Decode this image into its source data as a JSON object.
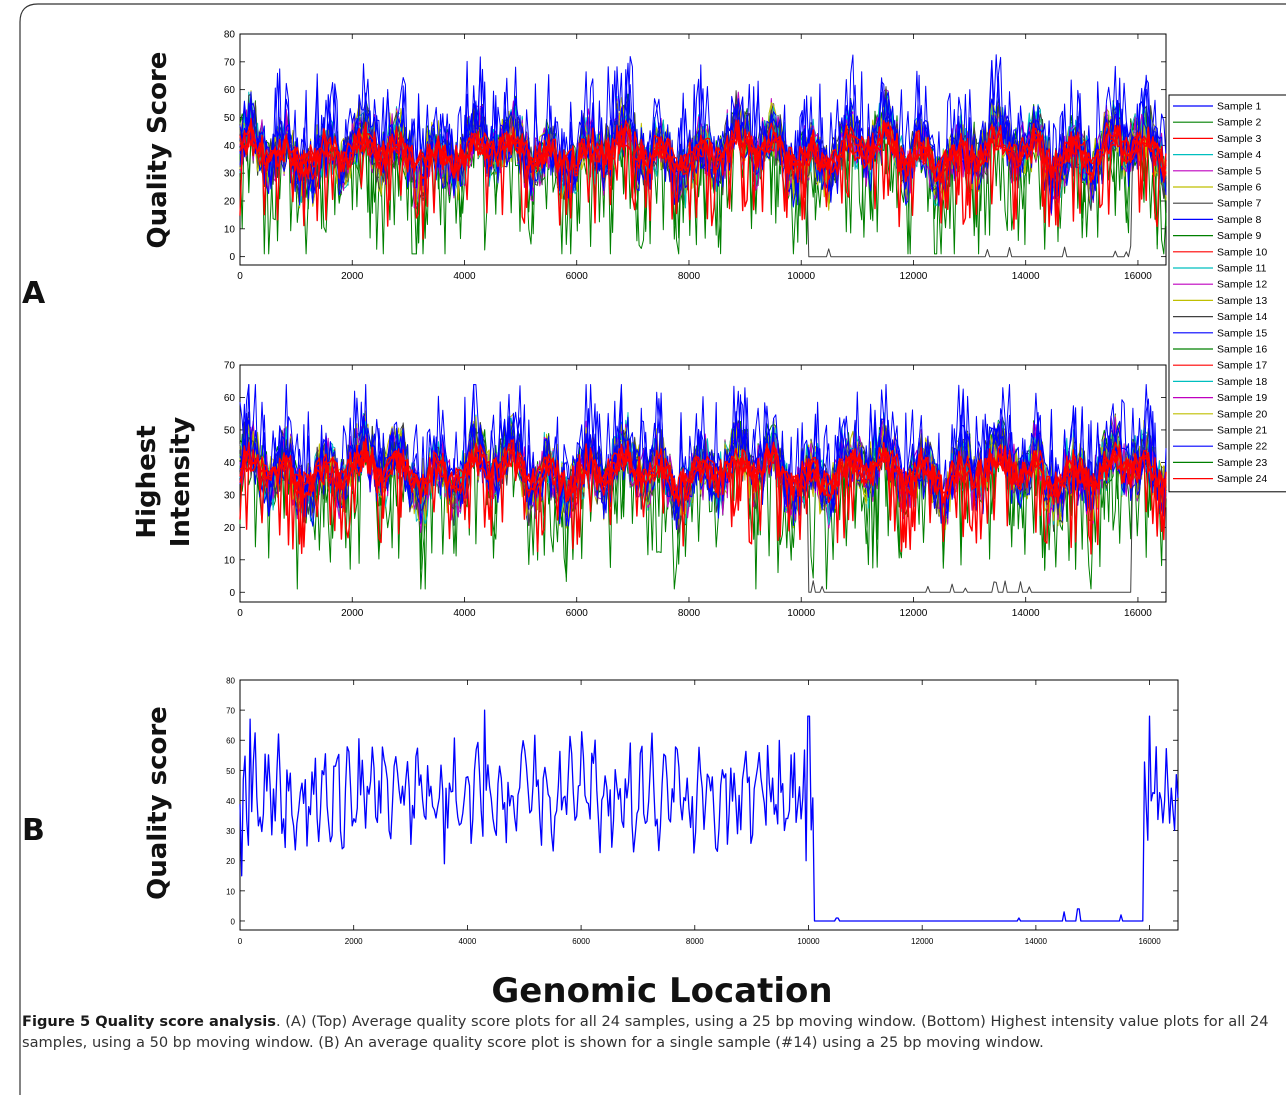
{
  "figure": {
    "panel_a_label": "A",
    "panel_b_label": "B",
    "x_axis_title": "Genomic Location",
    "caption_bold": "Figure 5 Quality score analysis",
    "caption_text": ". (A) (Top) Average quality score plots for all 24 samples, using a 25 bp moving window. (Bottom) Highest intensity value plots for all 24 samples, using a 50 bp moving window. (B) An average quality score plot is shown for a single sample (#14) using a 25 bp moving window."
  },
  "chart_data": [
    {
      "id": "a-top",
      "type": "line",
      "ylabel": "Quality Score",
      "xlim": [
        0,
        16500
      ],
      "ylim": [
        -3,
        80
      ],
      "xticks": [
        0,
        2000,
        4000,
        6000,
        8000,
        10000,
        12000,
        14000,
        16000
      ],
      "yticks": [
        0,
        10,
        20,
        30,
        40,
        50,
        60,
        70,
        80
      ],
      "legend": "right",
      "series": [
        {
          "name": "Sample 1",
          "color": "#0000ff"
        },
        {
          "name": "Sample 2",
          "color": "#008000"
        },
        {
          "name": "Sample 3",
          "color": "#ff0000"
        },
        {
          "name": "Sample 4",
          "color": "#00bfbf"
        },
        {
          "name": "Sample 5",
          "color": "#bf00bf"
        },
        {
          "name": "Sample 6",
          "color": "#bfbf00"
        },
        {
          "name": "Sample 7",
          "color": "#404040"
        },
        {
          "name": "Sample 8",
          "color": "#0000ff"
        },
        {
          "name": "Sample 9",
          "color": "#008000"
        },
        {
          "name": "Sample 10",
          "color": "#ff0000"
        },
        {
          "name": "Sample 11",
          "color": "#00bfbf"
        },
        {
          "name": "Sample 12",
          "color": "#bf00bf"
        },
        {
          "name": "Sample 13",
          "color": "#bfbf00"
        },
        {
          "name": "Sample 14",
          "color": "#404040"
        },
        {
          "name": "Sample 15",
          "color": "#0000ff"
        },
        {
          "name": "Sample 16",
          "color": "#008000"
        },
        {
          "name": "Sample 17",
          "color": "#ff0000"
        },
        {
          "name": "Sample 18",
          "color": "#00bfbf"
        },
        {
          "name": "Sample 19",
          "color": "#bf00bf"
        },
        {
          "name": "Sample 20",
          "color": "#bfbf00"
        },
        {
          "name": "Sample 21",
          "color": "#404040"
        },
        {
          "name": "Sample 22",
          "color": "#0000ff"
        },
        {
          "name": "Sample 23",
          "color": "#008000"
        },
        {
          "name": "Sample 24",
          "color": "#ff0000"
        }
      ],
      "dropout_series": "Sample 14",
      "dropout_range": [
        10100,
        15900
      ],
      "band_range": [
        20,
        55
      ]
    },
    {
      "id": "a-bottom",
      "type": "line",
      "ylabel": "Highest Intensity",
      "xlim": [
        0,
        16500
      ],
      "ylim": [
        -3,
        70
      ],
      "xticks": [
        0,
        2000,
        4000,
        6000,
        8000,
        10000,
        12000,
        14000,
        16000
      ],
      "yticks": [
        0,
        10,
        20,
        30,
        40,
        50,
        60,
        70
      ],
      "series_from": "a-top",
      "dropout_series": "Sample 14",
      "dropout_range": [
        10100,
        15900
      ],
      "band_range": [
        22,
        52
      ]
    },
    {
      "id": "b",
      "type": "line",
      "ylabel": "Quality score",
      "xlim": [
        0,
        16500
      ],
      "ylim": [
        -3,
        80
      ],
      "xticks": [
        0,
        2000,
        4000,
        6000,
        8000,
        10000,
        12000,
        14000,
        16000
      ],
      "yticks": [
        0,
        10,
        20,
        30,
        40,
        50,
        60,
        70,
        80
      ],
      "series": [
        {
          "color": "#0000ff"
        }
      ],
      "dropout_range": [
        10100,
        15900
      ],
      "peaks": [
        [
          180,
          67
        ],
        [
          4300,
          70
        ],
        [
          10000,
          68
        ],
        [
          16000,
          68
        ]
      ],
      "dips": [
        [
          3600,
          19
        ],
        [
          9950,
          20
        ],
        [
          20,
          15
        ]
      ],
      "post_dropout_bumps": [
        [
          10500,
          1
        ],
        [
          13700,
          1
        ],
        [
          14500,
          3
        ],
        [
          14750,
          4
        ],
        [
          15500,
          2
        ]
      ]
    }
  ]
}
